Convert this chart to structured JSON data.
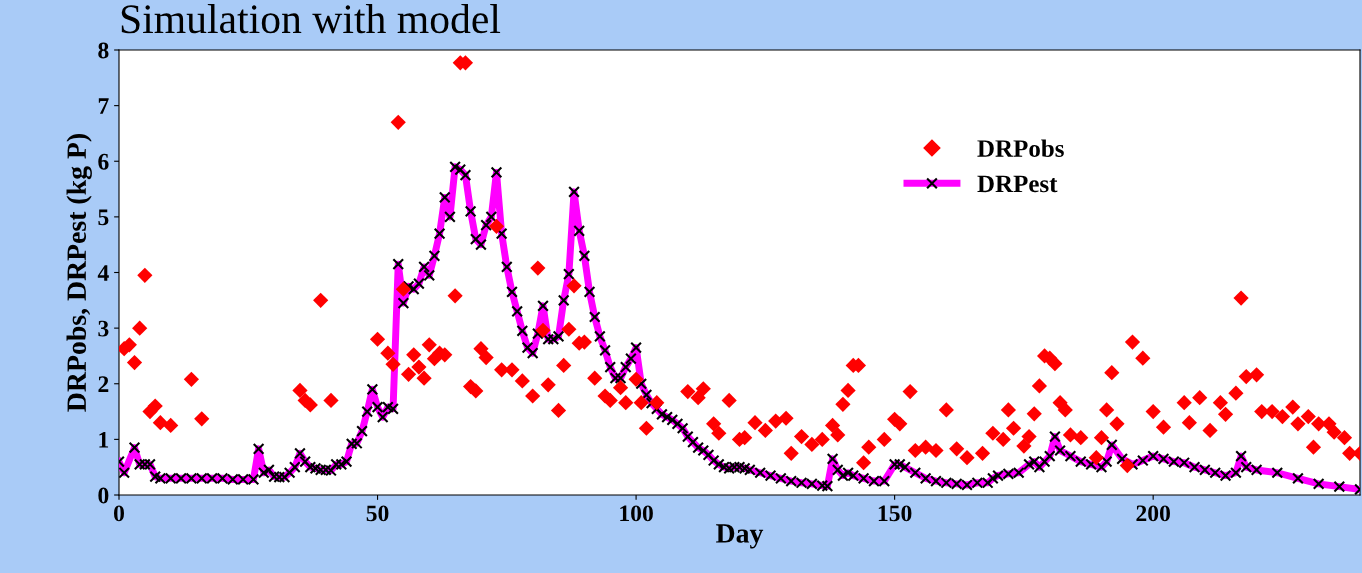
{
  "chart_data": {
    "type": "scatter",
    "title": "Simulation with model",
    "xlabel": "Day",
    "ylabel": "DRPobs, DRPest (kg P)",
    "xlim": [
      0,
      240
    ],
    "xticks": [
      0,
      50,
      100,
      150,
      200
    ],
    "ylim": [
      0,
      8
    ],
    "yticks": [
      0,
      1,
      2,
      3,
      4,
      5,
      6,
      7,
      8
    ],
    "grid": false,
    "legend": "top right",
    "series": [
      {
        "name": "DRPobs",
        "marker": "diamond",
        "color": "#ff0000",
        "x": [
          1,
          2,
          3,
          4,
          5,
          6,
          7,
          8,
          10,
          14,
          16,
          35,
          36,
          37,
          39,
          41,
          50,
          52,
          53,
          54,
          55,
          56,
          57,
          58,
          59,
          60,
          61,
          62,
          63,
          65,
          66,
          67,
          68,
          69,
          70,
          71,
          73,
          74,
          76,
          78,
          80,
          81,
          82,
          83,
          85,
          86,
          87,
          88,
          89,
          90,
          92,
          94,
          95,
          97,
          98,
          100,
          101,
          102,
          104,
          110,
          112,
          113,
          115,
          116,
          118,
          120,
          121,
          123,
          125,
          127,
          129,
          130,
          132,
          134,
          136,
          138,
          139,
          140,
          141,
          142,
          143,
          144,
          145,
          148,
          150,
          151,
          153,
          154,
          156,
          158,
          160,
          162,
          164,
          167,
          169,
          171,
          172,
          173,
          175,
          176,
          177,
          178,
          179,
          180,
          181,
          182,
          183,
          184,
          186,
          189,
          190,
          191,
          192,
          193,
          195,
          196,
          198,
          200,
          202,
          206,
          207,
          209,
          211,
          213,
          214,
          216,
          217,
          218,
          220,
          221,
          223,
          225,
          227,
          228,
          230,
          231,
          232,
          234,
          235,
          237,
          238,
          240
        ],
        "values": [
          2.63,
          2.7,
          2.38,
          3.0,
          3.95,
          1.5,
          1.6,
          1.3,
          1.25,
          2.08,
          1.37,
          1.88,
          1.7,
          1.62,
          3.5,
          1.7,
          2.8,
          2.55,
          2.35,
          6.7,
          3.7,
          2.17,
          2.52,
          2.3,
          2.1,
          2.7,
          2.45,
          2.55,
          2.52,
          3.58,
          7.77,
          7.77,
          1.95,
          1.87,
          2.63,
          2.47,
          4.83,
          2.25,
          2.25,
          2.05,
          1.78,
          4.08,
          2.96,
          1.98,
          1.52,
          2.33,
          2.98,
          3.76,
          2.73,
          2.75,
          2.1,
          1.78,
          1.7,
          1.93,
          1.66,
          2.08,
          1.66,
          1.2,
          1.66,
          1.86,
          1.75,
          1.91,
          1.28,
          1.11,
          1.7,
          1.0,
          1.03,
          1.3,
          1.16,
          1.33,
          1.38,
          0.75,
          1.05,
          0.91,
          1.0,
          1.25,
          1.08,
          1.63,
          1.88,
          2.33,
          2.33,
          0.58,
          0.86,
          1.0,
          1.36,
          1.28,
          1.86,
          0.8,
          0.86,
          0.8,
          1.53,
          0.83,
          0.67,
          0.75,
          1.11,
          1.0,
          1.53,
          1.2,
          0.88,
          1.05,
          1.46,
          1.96,
          2.5,
          2.46,
          2.36,
          1.66,
          1.53,
          1.08,
          1.03,
          0.67,
          1.03,
          1.53,
          2.2,
          1.28,
          0.53,
          2.75,
          2.46,
          1.5,
          1.22,
          1.66,
          1.3,
          1.75,
          1.16,
          1.66,
          1.45,
          1.83,
          3.54,
          2.13,
          2.16,
          1.5,
          1.5,
          1.41,
          1.58,
          1.28,
          1.41,
          0.86,
          1.28,
          1.28,
          1.13,
          1.03,
          0.75,
          0.75
        ]
      },
      {
        "name": "DRPest",
        "type": "line",
        "marker": "cross",
        "line_style": "solid",
        "color": "#ff00ff",
        "x": [
          0,
          1,
          3,
          4,
          5,
          6,
          7,
          8,
          10,
          12,
          14,
          16,
          18,
          20,
          22,
          24,
          26,
          27,
          28,
          29,
          30,
          31,
          32,
          33,
          34,
          35,
          36,
          37,
          38,
          39,
          40,
          41,
          42,
          43,
          44,
          45,
          46,
          47,
          48,
          49,
          50,
          51,
          52,
          53,
          54,
          55,
          56,
          57,
          58,
          59,
          60,
          61,
          62,
          63,
          64,
          65,
          66,
          67,
          68,
          69,
          70,
          71,
          72,
          73,
          74,
          75,
          76,
          77,
          78,
          79,
          80,
          81,
          82,
          83,
          84,
          85,
          86,
          87,
          88,
          89,
          90,
          91,
          92,
          93,
          94,
          95,
          96,
          97,
          98,
          99,
          100,
          101,
          102,
          103,
          104,
          105,
          106,
          107,
          108,
          109,
          110,
          111,
          112,
          113,
          114,
          115,
          116,
          117,
          118,
          119,
          120,
          121,
          122,
          124,
          126,
          128,
          130,
          132,
          134,
          136,
          137,
          138,
          139,
          140,
          141,
          142,
          144,
          146,
          148,
          150,
          151,
          152,
          154,
          156,
          158,
          160,
          162,
          164,
          166,
          168,
          169,
          170,
          172,
          174,
          176,
          177,
          178,
          179,
          180,
          181,
          182,
          184,
          186,
          188,
          190,
          191,
          192,
          194,
          196,
          198,
          200,
          202,
          204,
          206,
          208,
          210,
          212,
          214,
          216,
          217,
          218,
          220,
          224,
          228,
          232,
          236,
          240
        ],
        "values": [
          0.6,
          0.4,
          0.85,
          0.55,
          0.55,
          0.55,
          0.33,
          0.3,
          0.3,
          0.3,
          0.3,
          0.3,
          0.3,
          0.3,
          0.28,
          0.28,
          0.28,
          0.83,
          0.4,
          0.45,
          0.33,
          0.32,
          0.32,
          0.4,
          0.5,
          0.75,
          0.6,
          0.5,
          0.48,
          0.45,
          0.45,
          0.44,
          0.55,
          0.55,
          0.6,
          0.92,
          0.93,
          1.15,
          1.5,
          1.9,
          1.58,
          1.4,
          1.58,
          1.55,
          4.15,
          3.45,
          3.75,
          3.7,
          3.8,
          4.1,
          3.95,
          4.3,
          4.7,
          5.35,
          5.0,
          5.9,
          5.85,
          5.75,
          5.1,
          4.6,
          4.5,
          4.85,
          5.0,
          5.8,
          4.7,
          4.1,
          3.65,
          3.3,
          2.95,
          2.65,
          2.55,
          2.9,
          3.4,
          2.8,
          2.8,
          2.85,
          3.5,
          3.97,
          5.45,
          4.75,
          4.3,
          3.65,
          3.2,
          2.85,
          2.6,
          2.3,
          2.1,
          2.1,
          2.3,
          2.45,
          2.65,
          2.0,
          1.8,
          1.65,
          1.55,
          1.45,
          1.4,
          1.35,
          1.28,
          1.2,
          1.05,
          0.95,
          0.85,
          0.8,
          0.72,
          0.62,
          0.55,
          0.5,
          0.48,
          0.5,
          0.5,
          0.48,
          0.45,
          0.4,
          0.35,
          0.3,
          0.25,
          0.22,
          0.2,
          0.17,
          0.16,
          0.65,
          0.45,
          0.35,
          0.4,
          0.35,
          0.3,
          0.25,
          0.25,
          0.55,
          0.55,
          0.5,
          0.4,
          0.3,
          0.25,
          0.22,
          0.2,
          0.18,
          0.22,
          0.22,
          0.3,
          0.35,
          0.38,
          0.4,
          0.55,
          0.6,
          0.5,
          0.6,
          0.7,
          1.05,
          0.8,
          0.7,
          0.6,
          0.55,
          0.5,
          0.6,
          0.9,
          0.65,
          0.55,
          0.62,
          0.7,
          0.65,
          0.6,
          0.58,
          0.5,
          0.45,
          0.4,
          0.35,
          0.4,
          0.7,
          0.5,
          0.45,
          0.4,
          0.3,
          0.2,
          0.15,
          0.1
        ]
      }
    ]
  }
}
